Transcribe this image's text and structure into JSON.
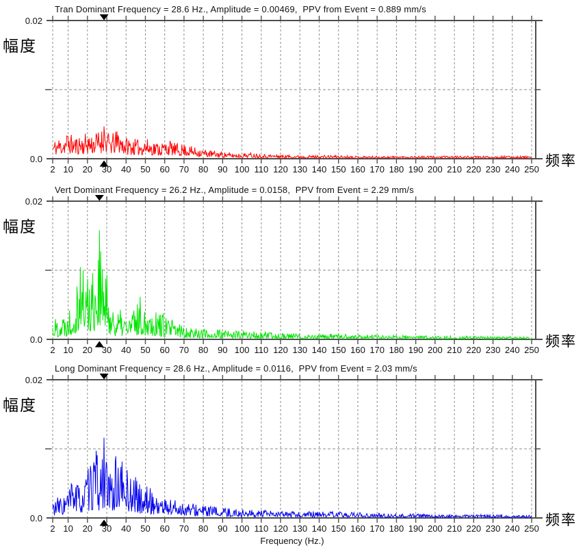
{
  "labels": {
    "y_axis_cjk": "幅度",
    "x_axis_cjk": "频率",
    "x_axis_title": "Frequency (Hz.)",
    "y_max": "0.02",
    "y_min": "0.0"
  },
  "chart_data": [
    {
      "type": "area",
      "channel": "Tran",
      "title": "Tran Dominant Frequency = 28.6 Hz., Amplitude = 0.00469,  PPV from Event = 0.889 mm/s",
      "dominant_frequency_hz": 28.6,
      "amplitude": 0.00469,
      "ppv_mm_s": 0.889,
      "color": "#ff0000",
      "xlim": [
        2,
        250
      ],
      "ylim": [
        0,
        0.02
      ],
      "y_ticks": [
        0,
        0.01,
        0.02
      ],
      "x_ticks": [
        2,
        10,
        20,
        30,
        40,
        50,
        60,
        70,
        80,
        90,
        100,
        110,
        120,
        130,
        140,
        150,
        160,
        170,
        180,
        190,
        200,
        210,
        220,
        230,
        240,
        250
      ],
      "marker_hz": 28.6,
      "grid": "dashed",
      "seed": 11,
      "texture": {
        "floor": 0.18,
        "exp": 1.25
      },
      "envelope": [
        [
          2,
          0.0026
        ],
        [
          4,
          0.003
        ],
        [
          6,
          0.0032
        ],
        [
          8,
          0.0034
        ],
        [
          10,
          0.0042
        ],
        [
          12,
          0.0034
        ],
        [
          14,
          0.0032
        ],
        [
          16,
          0.0036
        ],
        [
          18,
          0.0034
        ],
        [
          20,
          0.004
        ],
        [
          22,
          0.0036
        ],
        [
          24,
          0.0038
        ],
        [
          26,
          0.0042
        ],
        [
          28.6,
          0.0047
        ],
        [
          30,
          0.004
        ],
        [
          32,
          0.0036
        ],
        [
          34,
          0.0038
        ],
        [
          36,
          0.0045
        ],
        [
          38,
          0.0036
        ],
        [
          40,
          0.0032
        ],
        [
          43,
          0.003
        ],
        [
          46,
          0.0028
        ],
        [
          50,
          0.003
        ],
        [
          54,
          0.0026
        ],
        [
          58,
          0.0024
        ],
        [
          62,
          0.0028
        ],
        [
          66,
          0.0022
        ],
        [
          70,
          0.0022
        ],
        [
          74,
          0.0018
        ],
        [
          78,
          0.0016
        ],
        [
          82,
          0.0013
        ],
        [
          86,
          0.0011
        ],
        [
          90,
          0.001
        ],
        [
          95,
          0.0008
        ],
        [
          100,
          0.0008
        ],
        [
          105,
          0.0009
        ],
        [
          110,
          0.0007
        ],
        [
          120,
          0.0006
        ],
        [
          130,
          0.0005
        ],
        [
          140,
          0.0005
        ],
        [
          150,
          0.0005
        ],
        [
          160,
          0.0004
        ],
        [
          170,
          0.0004
        ],
        [
          180,
          0.0004
        ],
        [
          190,
          0.0004
        ],
        [
          200,
          0.0004
        ],
        [
          210,
          0.0004
        ],
        [
          220,
          0.0004
        ],
        [
          230,
          0.0004
        ],
        [
          240,
          0.0004
        ],
        [
          250,
          0.0004
        ]
      ]
    },
    {
      "type": "area",
      "channel": "Vert",
      "title": "Vert Dominant Frequency = 26.2 Hz., Amplitude = 0.0158,  PPV from Event = 2.29 mm/s",
      "dominant_frequency_hz": 26.2,
      "amplitude": 0.0158,
      "ppv_mm_s": 2.29,
      "color": "#00e500",
      "xlim": [
        2,
        250
      ],
      "ylim": [
        0,
        0.02
      ],
      "y_ticks": [
        0,
        0.01,
        0.02
      ],
      "x_ticks": [
        2,
        10,
        20,
        30,
        40,
        50,
        60,
        70,
        80,
        90,
        100,
        110,
        120,
        130,
        140,
        150,
        160,
        170,
        180,
        190,
        200,
        210,
        220,
        230,
        240,
        250
      ],
      "marker_hz": 26.2,
      "grid": "dashed",
      "seed": 22,
      "texture": {
        "floor": 0.1,
        "exp": 1.6
      },
      "envelope": [
        [
          2,
          0.0032
        ],
        [
          4,
          0.0035
        ],
        [
          6,
          0.0038
        ],
        [
          8,
          0.0042
        ],
        [
          10,
          0.005
        ],
        [
          12,
          0.0065
        ],
        [
          14,
          0.009
        ],
        [
          16,
          0.0145
        ],
        [
          17,
          0.012
        ],
        [
          18,
          0.0115
        ],
        [
          20,
          0.0105
        ],
        [
          22,
          0.011
        ],
        [
          24,
          0.0125
        ],
        [
          26.2,
          0.0158
        ],
        [
          27,
          0.013
        ],
        [
          28,
          0.0115
        ],
        [
          30,
          0.0095
        ],
        [
          32,
          0.0065
        ],
        [
          34,
          0.005
        ],
        [
          36,
          0.0042
        ],
        [
          38,
          0.0044
        ],
        [
          40,
          0.0038
        ],
        [
          42,
          0.004
        ],
        [
          44,
          0.0048
        ],
        [
          46,
          0.0058
        ],
        [
          48,
          0.0066
        ],
        [
          50,
          0.0055
        ],
        [
          52,
          0.0058
        ],
        [
          54,
          0.005
        ],
        [
          56,
          0.0046
        ],
        [
          58,
          0.0042
        ],
        [
          60,
          0.0036
        ],
        [
          63,
          0.0031
        ],
        [
          66,
          0.0027
        ],
        [
          70,
          0.0023
        ],
        [
          74,
          0.002
        ],
        [
          78,
          0.0018
        ],
        [
          82,
          0.0016
        ],
        [
          86,
          0.0015
        ],
        [
          90,
          0.0014
        ],
        [
          95,
          0.0014
        ],
        [
          100,
          0.0013
        ],
        [
          105,
          0.0012
        ],
        [
          110,
          0.0011
        ],
        [
          115,
          0.001
        ],
        [
          120,
          0.001
        ],
        [
          130,
          0.0009
        ],
        [
          140,
          0.0008
        ],
        [
          150,
          0.0008
        ],
        [
          160,
          0.0007
        ],
        [
          170,
          0.0007
        ],
        [
          180,
          0.0006
        ],
        [
          190,
          0.0006
        ],
        [
          200,
          0.0005
        ],
        [
          210,
          0.0005
        ],
        [
          220,
          0.0005
        ],
        [
          230,
          0.0004
        ],
        [
          240,
          0.0004
        ],
        [
          250,
          0.0004
        ]
      ]
    },
    {
      "type": "area",
      "channel": "Long",
      "title": "Long Dominant Frequency = 28.6 Hz., Amplitude = 0.0116,  PPV from Event = 2.03 mm/s",
      "dominant_frequency_hz": 28.6,
      "amplitude": 0.0116,
      "ppv_mm_s": 2.03,
      "color": "#0000ee",
      "xlim": [
        2,
        250
      ],
      "ylim": [
        0,
        0.02
      ],
      "y_ticks": [
        0,
        0.01,
        0.02
      ],
      "x_ticks": [
        2,
        10,
        20,
        30,
        40,
        50,
        60,
        70,
        80,
        90,
        100,
        110,
        120,
        130,
        140,
        150,
        160,
        170,
        180,
        190,
        200,
        210,
        220,
        230,
        240,
        250
      ],
      "marker_hz": 28.6,
      "grid": "dashed",
      "seed": 33,
      "texture": {
        "floor": 0.13,
        "exp": 1.5
      },
      "envelope": [
        [
          2,
          0.0028
        ],
        [
          4,
          0.003
        ],
        [
          6,
          0.0033
        ],
        [
          8,
          0.0036
        ],
        [
          10,
          0.0042
        ],
        [
          12,
          0.006
        ],
        [
          13,
          0.0085
        ],
        [
          14,
          0.0055
        ],
        [
          16,
          0.005
        ],
        [
          18,
          0.006
        ],
        [
          20,
          0.007
        ],
        [
          22,
          0.0078
        ],
        [
          24,
          0.0112
        ],
        [
          26,
          0.0075
        ],
        [
          28.6,
          0.0116
        ],
        [
          30,
          0.008
        ],
        [
          32,
          0.0066
        ],
        [
          34,
          0.0086
        ],
        [
          36,
          0.0095
        ],
        [
          38,
          0.0085
        ],
        [
          40,
          0.0078
        ],
        [
          42,
          0.0062
        ],
        [
          44,
          0.0068
        ],
        [
          46,
          0.0052
        ],
        [
          48,
          0.0047
        ],
        [
          50,
          0.005
        ],
        [
          53,
          0.0042
        ],
        [
          56,
          0.0037
        ],
        [
          60,
          0.0032
        ],
        [
          64,
          0.0029
        ],
        [
          68,
          0.0026
        ],
        [
          72,
          0.0023
        ],
        [
          76,
          0.0021
        ],
        [
          80,
          0.0019
        ],
        [
          85,
          0.0017
        ],
        [
          90,
          0.0015
        ],
        [
          95,
          0.0014
        ],
        [
          100,
          0.0013
        ],
        [
          110,
          0.0011
        ],
        [
          120,
          0.001
        ],
        [
          130,
          0.0009
        ],
        [
          140,
          0.001
        ],
        [
          150,
          0.0009
        ],
        [
          160,
          0.0008
        ],
        [
          170,
          0.0007
        ],
        [
          180,
          0.0006
        ],
        [
          190,
          0.0006
        ],
        [
          200,
          0.0005
        ],
        [
          210,
          0.0005
        ],
        [
          220,
          0.0005
        ],
        [
          230,
          0.0005
        ],
        [
          240,
          0.0004
        ],
        [
          250,
          0.0004
        ]
      ]
    }
  ]
}
